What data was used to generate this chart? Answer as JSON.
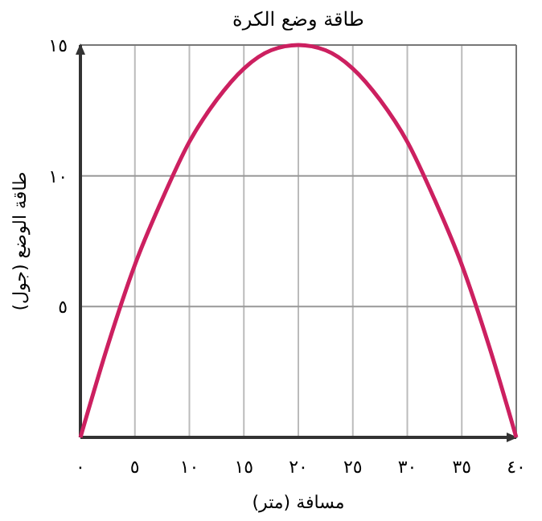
{
  "chart_data": {
    "type": "line",
    "title": "طاقة وضع الكرة",
    "xlabel": "مسافة (متر)",
    "ylabel": "طاقة الوضع (جول)",
    "x": [
      0,
      2.5,
      5,
      7.5,
      10,
      12.5,
      15,
      17.5,
      20,
      22.5,
      25,
      27.5,
      30,
      32.5,
      35,
      37.5,
      40
    ],
    "series": [
      {
        "color": "#cc2060",
        "values": [
          0,
          3.5,
          6.6,
          9.1,
          11.3,
          12.9,
          14.1,
          14.8,
          15,
          14.8,
          14.1,
          12.9,
          11.3,
          9.1,
          6.6,
          3.5,
          0
        ]
      }
    ],
    "xlim": [
      0,
      40
    ],
    "ylim": [
      0,
      15
    ],
    "xticks": [
      {
        "value": 0,
        "label": "٠"
      },
      {
        "value": 5,
        "label": "٥"
      },
      {
        "value": 10,
        "label": "١٠"
      },
      {
        "value": 15,
        "label": "١٥"
      },
      {
        "value": 20,
        "label": "٢٠"
      },
      {
        "value": 25,
        "label": "٢٥"
      },
      {
        "value": 30,
        "label": "٣٠"
      },
      {
        "value": 35,
        "label": "٣٥"
      },
      {
        "value": 40,
        "label": "٤٠"
      }
    ],
    "yticks": [
      {
        "value": 0,
        "label": null
      },
      {
        "value": 5,
        "label": "٥"
      },
      {
        "value": 10,
        "label": "١٠"
      },
      {
        "value": 15,
        "label": "١٥"
      }
    ],
    "grid": true,
    "marker": "none",
    "line_style": "solid"
  }
}
